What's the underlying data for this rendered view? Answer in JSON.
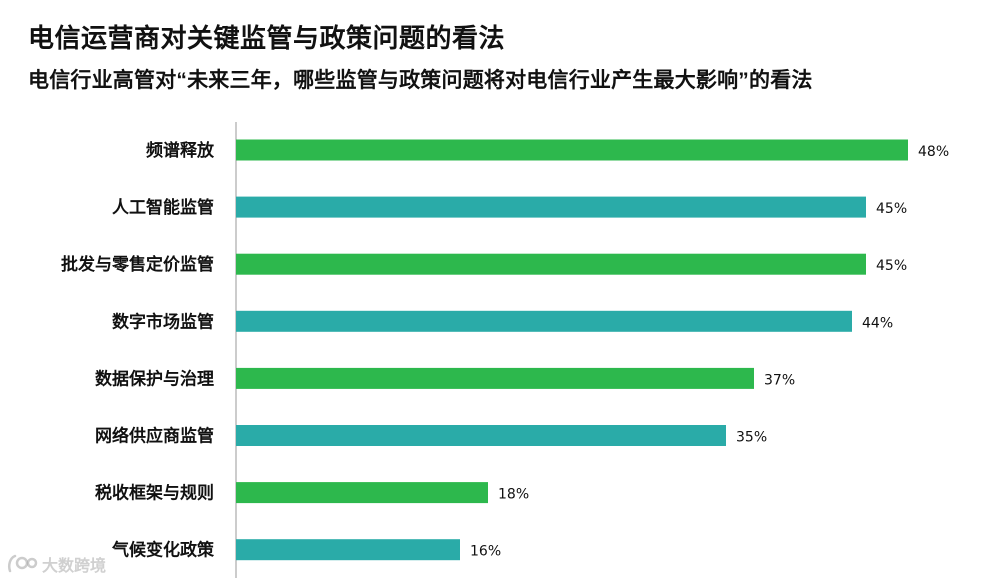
{
  "title": "电信运营商对关键监管与政策问题的看法",
  "subtitle": "电信行业高管对“未来三年，哪些监管与政策问题将对电信行业产生最大影响”的看法",
  "watermark": {
    "text": "大数跨境",
    "icon": "brand-logo-icon"
  },
  "colors": {
    "green": "#2db84d",
    "teal": "#2aaba8",
    "axis": "#bbbbbb"
  },
  "chart_data": {
    "type": "bar",
    "orientation": "horizontal",
    "categories": [
      "频谱释放",
      "人工智能监管",
      "批发与零售定价监管",
      "数字市场监管",
      "数据保护与治理",
      "网络供应商监管",
      "税收框架与规则",
      "气候变化政策"
    ],
    "values": [
      48,
      45,
      45,
      44,
      37,
      35,
      18,
      16
    ],
    "value_labels": [
      "48%",
      "45%",
      "45%",
      "44%",
      "37%",
      "35%",
      "18%",
      "16%"
    ],
    "bar_colors": [
      "#2db84d",
      "#2aaba8",
      "#2db84d",
      "#2aaba8",
      "#2db84d",
      "#2aaba8",
      "#2db84d",
      "#2aaba8"
    ],
    "unit": "%",
    "xlim": [
      0,
      50
    ],
    "grid": false,
    "legend": "none"
  }
}
